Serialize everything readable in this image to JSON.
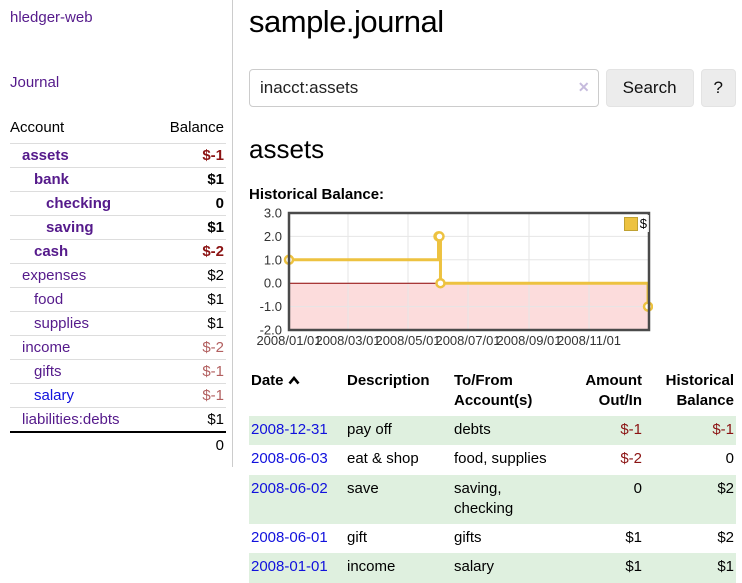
{
  "colors": {
    "link_purple": "#551a8b",
    "link_blue": "#1111dd",
    "negative_strong": "#8b1313",
    "negative_muted": "#b25f5f",
    "row_stripe_green": "#dff0df",
    "chart_line_gold": "#edc240",
    "chart_negative_fill": "#fcdcdc",
    "chart_zero_line": "#8b0000",
    "button_bg": "#ececec"
  },
  "sidebar": {
    "brand": "hledger-web",
    "nav_journal": "Journal",
    "accounts": {
      "header_account": "Account",
      "header_balance": "Balance",
      "rows": [
        {
          "name": "assets",
          "balance": "$-1"
        },
        {
          "name": "bank",
          "balance": "$1"
        },
        {
          "name": "checking",
          "balance": "0"
        },
        {
          "name": "saving",
          "balance": "$1"
        },
        {
          "name": "cash",
          "balance": "$-2"
        },
        {
          "name": "expenses",
          "balance": "$2"
        },
        {
          "name": "food",
          "balance": "$1"
        },
        {
          "name": "supplies",
          "balance": "$1"
        },
        {
          "name": "income",
          "balance": "$-2"
        },
        {
          "name": "gifts",
          "balance": "$-1"
        },
        {
          "name": "salary",
          "balance": "$-1"
        },
        {
          "name": "liabilities:debts",
          "balance": "$1"
        }
      ],
      "total": "0"
    }
  },
  "main": {
    "title": "sample.journal",
    "search": {
      "value": "inacct:assets",
      "clear_glyph": "✕",
      "button": "Search",
      "help_button": "?"
    },
    "account_heading": "assets",
    "chart_heading": "Historical Balance:"
  },
  "chart_data": {
    "type": "line",
    "style": "step",
    "title": "Historical Balance:",
    "series": [
      {
        "name": "$",
        "points": [
          [
            "2008-01-01",
            1
          ],
          [
            "2008-06-01",
            2
          ],
          [
            "2008-06-02",
            2
          ],
          [
            "2008-06-03",
            0
          ],
          [
            "2008-12-31",
            -1
          ]
        ]
      }
    ],
    "x_range": [
      "2008-01-01",
      "2009-01-01"
    ],
    "x_ticks": [
      "2008/01/01",
      "2008/03/01",
      "2008/05/01",
      "2008/07/01",
      "2008/09/01",
      "2008/11/01"
    ],
    "y_ticks": [
      "3.0",
      "2.0",
      "1.0",
      "0.0",
      "-1.0",
      "-2.0"
    ],
    "ylim": [
      -2,
      3
    ],
    "legend": "$",
    "legend_position": "top-right",
    "grid": true,
    "negative_region_shaded": true
  },
  "transactions": {
    "headers": {
      "date": "Date",
      "description": "Description",
      "accounts": "To/From Account(s)",
      "amount": "Amount Out/In",
      "balance": "Historical Balance"
    },
    "rows": [
      {
        "date": "2008-12-31",
        "description": "pay off",
        "accounts": "debts",
        "amount": "$-1",
        "balance": "$-1"
      },
      {
        "date": "2008-06-03",
        "description": "eat & shop",
        "accounts": "food, supplies",
        "amount": "$-2",
        "balance": "0"
      },
      {
        "date": "2008-06-02",
        "description": "save",
        "accounts": "saving, checking",
        "amount": "0",
        "balance": "$2"
      },
      {
        "date": "2008-06-01",
        "description": "gift",
        "accounts": "gifts",
        "amount": "$1",
        "balance": "$2"
      },
      {
        "date": "2008-01-01",
        "description": "income",
        "accounts": "salary",
        "amount": "$1",
        "balance": "$1"
      }
    ]
  }
}
